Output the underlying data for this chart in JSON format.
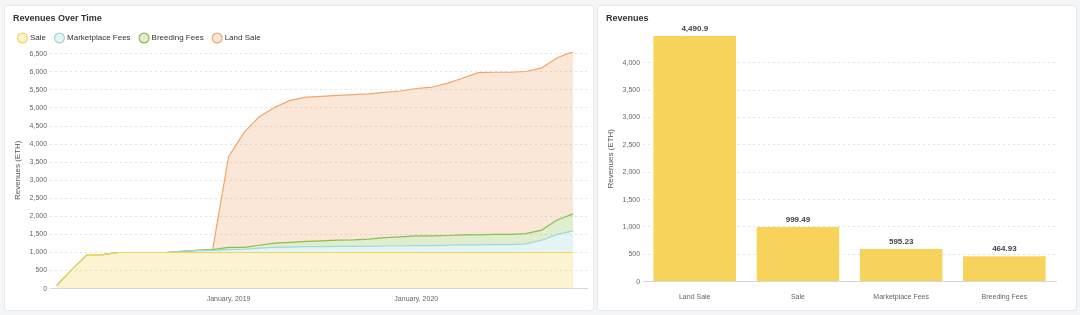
{
  "chart_data": [
    {
      "type": "area",
      "title": "Revenues Over Time",
      "ylabel": "Revenues (ETH)",
      "stacked": true,
      "legend": "top left",
      "grid": "y",
      "marker": "none",
      "x": [
        "2018-02",
        "2018-03",
        "2018-04",
        "2018-05",
        "2018-06",
        "2018-07",
        "2018-08",
        "2018-09",
        "2018-10",
        "2018-11",
        "2018-12",
        "2019-01",
        "2019-02",
        "2019-03",
        "2019-04",
        "2019-05",
        "2019-06",
        "2019-07",
        "2019-08",
        "2019-09",
        "2019-10",
        "2019-11",
        "2019-12",
        "2020-01",
        "2020-02",
        "2020-03",
        "2020-04",
        "2020-05",
        "2020-06",
        "2020-07",
        "2020-08",
        "2020-09",
        "2020-10",
        "2020-11"
      ],
      "xlim": [
        "2018-01-19",
        "2020-11-28"
      ],
      "xticks": [
        {
          "value": "2019-01-01",
          "label": "January, 2019"
        },
        {
          "value": "2020-01-01",
          "label": "January, 2020"
        }
      ],
      "ylim": [
        0,
        6550
      ],
      "yticks": [
        {
          "value": 0,
          "label": "0"
        },
        {
          "value": 500,
          "label": "500"
        },
        {
          "value": 1000,
          "label": "1,000"
        },
        {
          "value": 1500,
          "label": "1,500"
        },
        {
          "value": 2000,
          "label": "2,000"
        },
        {
          "value": 2500,
          "label": "2,500"
        },
        {
          "value": 3000,
          "label": "3,000"
        },
        {
          "value": 3500,
          "label": "3,500"
        },
        {
          "value": 4000,
          "label": "4,000"
        },
        {
          "value": 4500,
          "label": "4,500"
        },
        {
          "value": 5000,
          "label": "5,000"
        },
        {
          "value": 5500,
          "label": "5,500"
        },
        {
          "value": 6000,
          "label": "6,000"
        },
        {
          "value": 6500,
          "label": "6,500"
        }
      ],
      "series": [
        {
          "name": "Sale",
          "color": "#f5d35a",
          "values": [
            90,
            510,
            940,
            940,
            1000,
            1000,
            1000,
            1000,
            1000,
            1000,
            1000,
            1000,
            1000,
            1000,
            1000,
            1000,
            1000,
            1000,
            1000,
            1000,
            1000,
            1000,
            1000,
            1000,
            1000,
            1000,
            1000,
            1000,
            1000,
            1000,
            1000,
            1000,
            1000,
            1000
          ]
        },
        {
          "name": "Marketplace Fees",
          "color": "#9fd8d6",
          "values": [
            0,
            0,
            0,
            0,
            0,
            0,
            0,
            0,
            30,
            50,
            60,
            80,
            90,
            120,
            140,
            150,
            160,
            160,
            170,
            170,
            170,
            180,
            180,
            190,
            190,
            200,
            210,
            210,
            220,
            220,
            240,
            340,
            500,
            600
          ]
        },
        {
          "name": "Breeding Fees",
          "color": "#8cbd4f",
          "values": [
            0,
            0,
            0,
            0,
            0,
            0,
            0,
            0,
            0,
            10,
            20,
            60,
            50,
            80,
            120,
            130,
            150,
            160,
            170,
            180,
            200,
            230,
            250,
            270,
            270,
            270,
            280,
            280,
            280,
            280,
            280,
            280,
            400,
            470
          ]
        },
        {
          "name": "Land Sale",
          "color": "#f0a56c",
          "values": [
            0,
            0,
            0,
            0,
            0,
            0,
            0,
            0,
            0,
            0,
            0,
            2510,
            3200,
            3550,
            3760,
            3930,
            3990,
            4000,
            4010,
            4020,
            4020,
            4020,
            4040,
            4080,
            4120,
            4210,
            4340,
            4490,
            4490,
            4490,
            4490,
            4490,
            4490,
            4490
          ]
        }
      ]
    },
    {
      "type": "bar",
      "title": "Revenues",
      "ylabel": "Revenues (ETH)",
      "grid": "y",
      "categories": [
        "Land Sale",
        "Sale",
        "Marketplace Fees",
        "Breeding Fees"
      ],
      "values": [
        4490.9,
        999.49,
        595.23,
        464.93
      ],
      "color": "#f7d35c",
      "value_labels": [
        "4,490.9",
        "999.49",
        "595.23",
        "464.93"
      ],
      "ylim": [
        0,
        4490.9
      ],
      "yticks": [
        {
          "value": 0,
          "label": "0"
        },
        {
          "value": 500,
          "label": "500"
        },
        {
          "value": 1000,
          "label": "1,000"
        },
        {
          "value": 1500,
          "label": "1,500"
        },
        {
          "value": 2000,
          "label": "2,000"
        },
        {
          "value": 2500,
          "label": "2,500"
        },
        {
          "value": 3000,
          "label": "3,000"
        },
        {
          "value": 3500,
          "label": "3,500"
        },
        {
          "value": 4000,
          "label": "4,000"
        }
      ]
    }
  ]
}
